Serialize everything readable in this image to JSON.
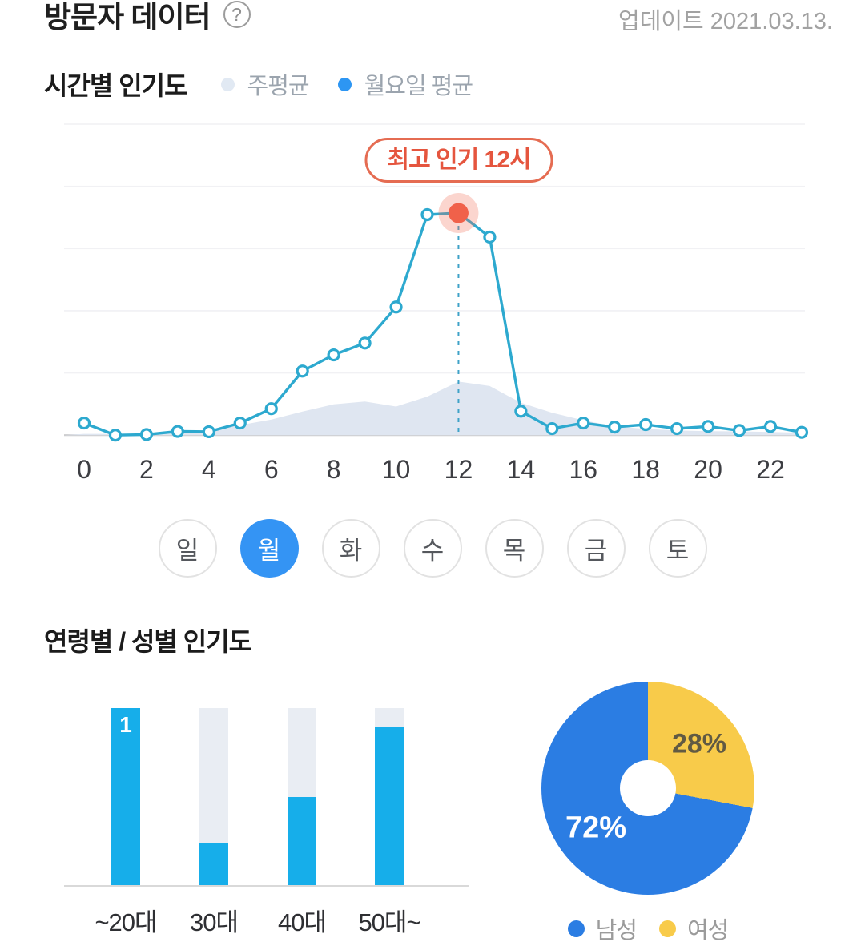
{
  "header": {
    "title": "방문자 데이터",
    "help_icon": "?",
    "updated": "업데이트 2021.03.13."
  },
  "hourly": {
    "section_title": "시간별 인기도",
    "legend": [
      {
        "label": "주평균",
        "color": "#e1e9f3"
      },
      {
        "label": "월요일 평균",
        "color": "#2d96f3"
      }
    ],
    "callout_label": "최고 인기 12시"
  },
  "days": {
    "items": [
      "일",
      "월",
      "화",
      "수",
      "목",
      "금",
      "토"
    ],
    "selected": "월",
    "selected_color": "#3494f4"
  },
  "age_gender": {
    "section_title": "연령별 / 성별 인기도"
  },
  "chart_data": [
    {
      "type": "line",
      "title": "시간별 인기도",
      "x": [
        0,
        1,
        2,
        3,
        4,
        5,
        6,
        7,
        8,
        9,
        10,
        11,
        12,
        13,
        14,
        15,
        16,
        17,
        18,
        19,
        20,
        21,
        22,
        23
      ],
      "x_ticks": [
        0,
        2,
        4,
        6,
        8,
        10,
        12,
        14,
        16,
        18,
        20,
        22
      ],
      "ylim": [
        0,
        100
      ],
      "grid": true,
      "legend_position": "top",
      "series": [
        {
          "name": "주평균",
          "style": "area",
          "color": "#dfe6f1",
          "values": [
            0.4,
            0.4,
            0.5,
            0.8,
            1.6,
            3.2,
            5.0,
            7.6,
            9.9,
            10.8,
            9.2,
            12.4,
            17.2,
            15.8,
            10.4,
            7.2,
            4.8,
            2.8,
            2.0,
            1.5,
            1.3,
            1.2,
            1.0,
            0.8
          ]
        },
        {
          "name": "월요일 평균",
          "style": "line",
          "color": "#2da9cf",
          "values": [
            3.9,
            0,
            0.2,
            1.2,
            1.1,
            3.9,
            8.5,
            20.6,
            25.8,
            29.6,
            41.2,
            70.9,
            71.4,
            63.7,
            7.7,
            2.1,
            3.9,
            2.6,
            3.4,
            2.1,
            2.8,
            1.5,
            2.8,
            0.9
          ]
        }
      ],
      "peak": {
        "hour": 12,
        "label": "최고 인기 12시",
        "dot_color": "#f0614a",
        "halo_color": "rgba(242,103,79,0.28)",
        "dash_color": "#3ea2c8"
      }
    },
    {
      "type": "bar",
      "title": "연령별 인기도",
      "categories": [
        "~20대",
        "30대",
        "40대",
        "50대~"
      ],
      "values": [
        100,
        24,
        50,
        89
      ],
      "value_labels": [
        "1",
        "",
        "",
        ""
      ],
      "ylim": [
        0,
        100
      ],
      "bar_color": "#16aeea",
      "track_color": "#e9edf3"
    },
    {
      "type": "pie",
      "title": "성별 인기도",
      "labels": [
        "남성",
        "여성"
      ],
      "values": [
        72,
        28
      ],
      "display": [
        "72%",
        "28%"
      ],
      "colors": [
        "#2b7de3",
        "#f8cb4a"
      ],
      "legend_position": "bottom"
    }
  ]
}
